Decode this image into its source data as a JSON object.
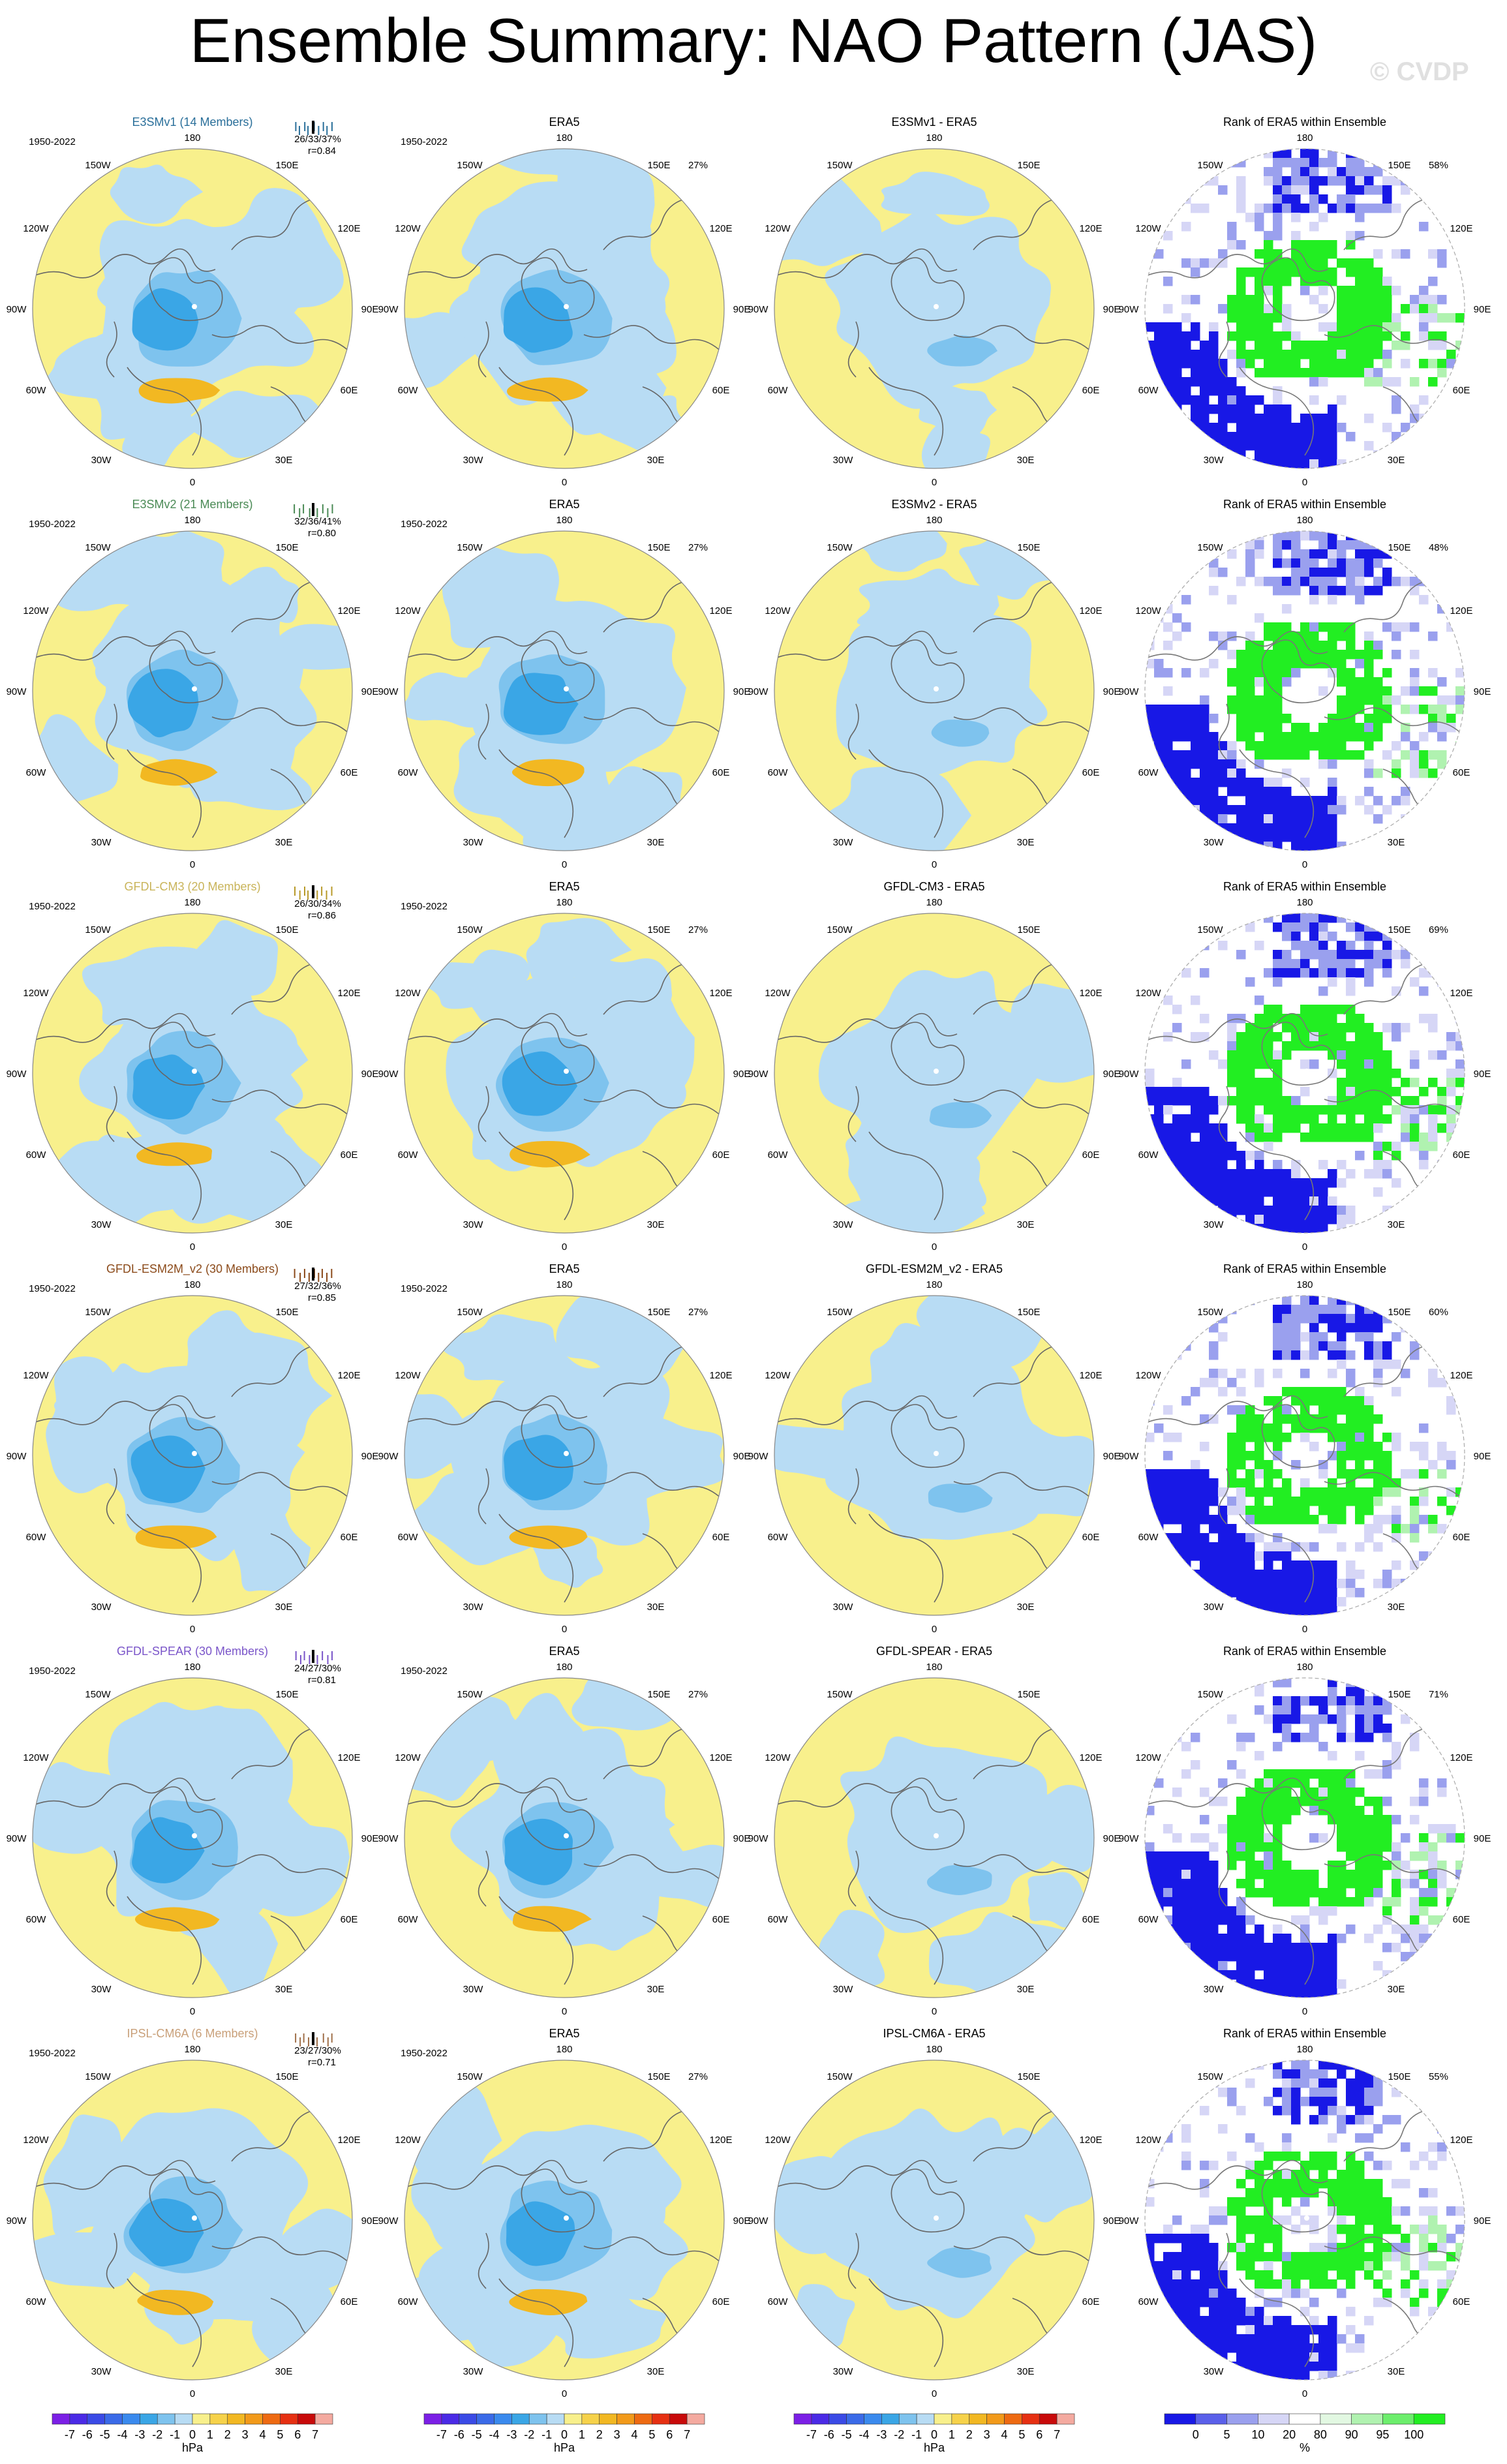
{
  "header": {
    "title": "Ensemble Summary: NAO Pattern (JAS)",
    "watermark": "© CVDP"
  },
  "period_label": "1950-2022",
  "lon_labels": {
    "top": "180",
    "bottom": "0",
    "upper_left": "150W",
    "upper_right": "150E",
    "mid_upper_left": "120W",
    "mid_upper_right": "120E",
    "left": "90W",
    "right": "90E",
    "mid_lower_left": "60W",
    "mid_lower_right": "60E",
    "lower_left": "30W",
    "lower_right": "30E"
  },
  "column_titles": {
    "col2": "ERA5",
    "col4": "Rank of ERA5 within Ensemble"
  },
  "era5_pct": "27%",
  "rows": [
    {
      "model": "E3SMv1 (14 Members)",
      "model_color": "#2a6f9a",
      "stats": "26/33/37%",
      "corr": "r=0.84",
      "diff_title": "E3SMv1 - ERA5",
      "rank_pct": "58%",
      "tick_color": "#2a6f9a"
    },
    {
      "model": "E3SMv2 (21 Members)",
      "model_color": "#4a8a55",
      "stats": "32/36/41%",
      "corr": "r=0.80",
      "diff_title": "E3SMv2 - ERA5",
      "rank_pct": "48%",
      "tick_color": "#4a8a55"
    },
    {
      "model": "GFDL-CM3 (20 Members)",
      "model_color": "#c9b45a",
      "stats": "26/30/34%",
      "corr": "r=0.86",
      "diff_title": "GFDL-CM3 - ERA5",
      "rank_pct": "69%",
      "tick_color": "#b89a2a"
    },
    {
      "model": "GFDL-ESM2M_v2 (30 Members)",
      "model_color": "#8b4a1a",
      "stats": "27/32/36%",
      "corr": "r=0.85",
      "diff_title": "GFDL-ESM2M_v2 - ERA5",
      "rank_pct": "60%",
      "tick_color": "#8b4a1a"
    },
    {
      "model": "GFDL-SPEAR (30 Members)",
      "model_color": "#7a55c9",
      "stats": "24/27/30%",
      "corr": "r=0.81",
      "diff_title": "GFDL-SPEAR - ERA5",
      "rank_pct": "71%",
      "tick_color": "#7a55c9"
    },
    {
      "model": "IPSL-CM6A (6 Members)",
      "model_color": "#c9a07a",
      "stats": "23/27/30%",
      "corr": "r=0.71",
      "diff_title": "IPSL-CM6A - ERA5",
      "rank_pct": "55%",
      "tick_color": "#a0704a"
    }
  ],
  "colors": {
    "land_yellow": "#f8f08c",
    "light_blue": "#b8dcf4",
    "mid_blue": "#7ec3ee",
    "deep_blue": "#3aa6e6",
    "orange": "#f2b822",
    "rank_green": "#22ee22",
    "rank_blue": "#1818e6",
    "rank_lavender": "#d6d6f6",
    "rank_paleblue": "#9aa0ee"
  },
  "chart_data": {
    "type": "heatmap",
    "projection": "north polar stereographic",
    "colorbar_pressure": {
      "unit": "hPa",
      "tick_labels": [
        "-7",
        "-6",
        "-5",
        "-4",
        "-3",
        "-2",
        "-1",
        "0",
        "1",
        "2",
        "3",
        "4",
        "5",
        "6",
        "7"
      ],
      "colors": [
        "#7b1fe6",
        "#4a2ae6",
        "#3a4ae6",
        "#3a6ae8",
        "#3a8aee",
        "#3aa6e6",
        "#7ec3ee",
        "#b8dcf4",
        "#f8f08c",
        "#f6d24a",
        "#f2b822",
        "#f29a1a",
        "#ee6a12",
        "#e63012",
        "#c80a0a",
        "#f4aaa0"
      ]
    },
    "colorbar_rank": {
      "unit": "%",
      "tick_labels": [
        "0",
        "5",
        "10",
        "20",
        "80",
        "90",
        "95",
        "100"
      ],
      "colors": [
        "#1818e6",
        "#5a60ea",
        "#9aa0ee",
        "#d6d6f6",
        "#ffffff",
        "#e2f8e2",
        "#b0f2b0",
        "#6cee6c",
        "#22ee22"
      ]
    }
  }
}
